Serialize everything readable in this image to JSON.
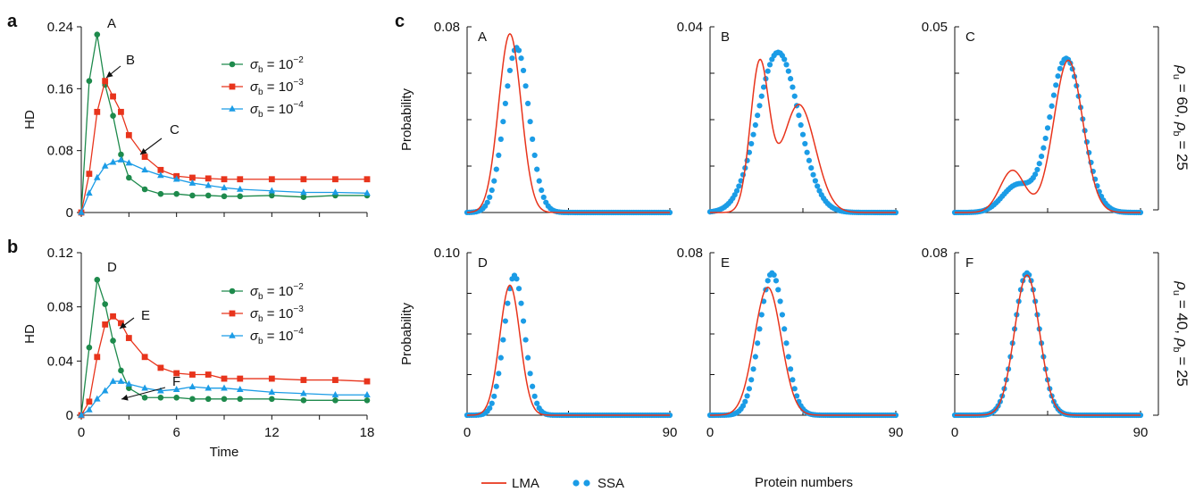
{
  "panel_labels": {
    "a": "a",
    "b": "b",
    "c": "c"
  },
  "legend_ab": {
    "entries": [
      {
        "symbol": "σ",
        "sub": "b",
        "eq": " = 10",
        "exp": "−2",
        "color": "#1e8a4c",
        "marker": "circle"
      },
      {
        "symbol": "σ",
        "sub": "b",
        "eq": " = 10",
        "exp": "−3",
        "color": "#e8341c",
        "marker": "square"
      },
      {
        "symbol": "σ",
        "sub": "b",
        "eq": " = 10",
        "exp": "−4",
        "color": "#1b9ce6",
        "marker": "triangle"
      }
    ]
  },
  "legend_c": {
    "lma": "LMA",
    "ssa": "SSA",
    "lma_color": "#e8341c",
    "ssa_color": "#1b9ce6"
  },
  "row_labels": [
    {
      "rho": "ρ",
      "u_sub": "u",
      "u_val": " = 60, ",
      "b_sub": "b",
      "b_val": " = 25"
    },
    {
      "rho": "ρ",
      "u_sub": "u",
      "u_val": " = 40, ",
      "b_sub": "b",
      "b_val": " = 25"
    }
  ],
  "chart_data": [
    {
      "id": "a",
      "type": "line",
      "ylabel": "HD",
      "xlabel": "",
      "xlim": [
        0,
        18
      ],
      "ylim": [
        0,
        0.24
      ],
      "xticks": [
        0,
        6,
        12,
        18
      ],
      "yticks": [
        0,
        0.08,
        0.16,
        0.24
      ],
      "ytick_labels": [
        "0",
        "0.08",
        "0.16",
        "0.24"
      ],
      "series": [
        {
          "name": "σb = 10−2",
          "color": "#1e8a4c",
          "marker": "circle",
          "x": [
            0,
            0.5,
            1,
            1.5,
            2,
            2.5,
            3,
            4,
            5,
            6,
            7,
            8,
            9,
            10,
            12,
            14,
            16,
            18
          ],
          "y": [
            0,
            0.17,
            0.23,
            0.165,
            0.125,
            0.075,
            0.045,
            0.03,
            0.024,
            0.024,
            0.022,
            0.022,
            0.021,
            0.021,
            0.022,
            0.02,
            0.022,
            0.022
          ]
        },
        {
          "name": "σb = 10−3",
          "color": "#e8341c",
          "marker": "square",
          "x": [
            0,
            0.5,
            1,
            1.5,
            2,
            2.5,
            3,
            4,
            5,
            6,
            7,
            8,
            9,
            10,
            12,
            14,
            16,
            18
          ],
          "y": [
            0,
            0.05,
            0.13,
            0.17,
            0.15,
            0.13,
            0.1,
            0.072,
            0.055,
            0.047,
            0.045,
            0.044,
            0.043,
            0.043,
            0.043,
            0.043,
            0.043,
            0.043
          ]
        },
        {
          "name": "σb = 10−4",
          "color": "#1b9ce6",
          "marker": "triangle",
          "x": [
            0,
            0.5,
            1,
            1.5,
            2,
            2.5,
            3,
            4,
            5,
            6,
            7,
            8,
            9,
            10,
            12,
            14,
            16,
            18
          ],
          "y": [
            0,
            0.025,
            0.045,
            0.06,
            0.065,
            0.068,
            0.064,
            0.055,
            0.048,
            0.043,
            0.038,
            0.035,
            0.032,
            0.03,
            0.028,
            0.026,
            0.026,
            0.025
          ]
        }
      ],
      "annotations": [
        {
          "text": "A",
          "x": 1,
          "y": 0.23,
          "arrow": false
        },
        {
          "text": "B",
          "x": 1.5,
          "y": 0.17,
          "arrow": true
        },
        {
          "text": "C",
          "x": 2.5,
          "y": 0.068,
          "arrow": true
        }
      ]
    },
    {
      "id": "b",
      "type": "line",
      "ylabel": "HD",
      "xlabel": "Time",
      "xlim": [
        0,
        18
      ],
      "ylim": [
        0,
        0.12
      ],
      "xticks": [
        0,
        6,
        12,
        18
      ],
      "yticks": [
        0,
        0.04,
        0.08,
        0.12
      ],
      "ytick_labels": [
        "0",
        "0.04",
        "0.08",
        "0.12"
      ],
      "series": [
        {
          "name": "σb = 10−2",
          "color": "#1e8a4c",
          "marker": "circle",
          "x": [
            0,
            0.5,
            1,
            1.5,
            2,
            2.5,
            3,
            4,
            5,
            6,
            7,
            8,
            9,
            10,
            12,
            14,
            16,
            18
          ],
          "y": [
            0,
            0.05,
            0.1,
            0.082,
            0.055,
            0.033,
            0.02,
            0.013,
            0.013,
            0.013,
            0.012,
            0.012,
            0.012,
            0.012,
            0.012,
            0.011,
            0.011,
            0.011
          ]
        },
        {
          "name": "σb = 10−3",
          "color": "#e8341c",
          "marker": "square",
          "x": [
            0,
            0.5,
            1,
            1.5,
            2,
            2.5,
            3,
            4,
            5,
            6,
            7,
            8,
            9,
            10,
            12,
            14,
            16,
            18
          ],
          "y": [
            0,
            0.01,
            0.043,
            0.067,
            0.073,
            0.068,
            0.057,
            0.043,
            0.035,
            0.031,
            0.03,
            0.03,
            0.027,
            0.027,
            0.027,
            0.026,
            0.026,
            0.025
          ]
        },
        {
          "name": "σb = 10−4",
          "color": "#1b9ce6",
          "marker": "triangle",
          "x": [
            0,
            0.5,
            1,
            1.5,
            2,
            2.5,
            3,
            4,
            5,
            6,
            7,
            8,
            9,
            10,
            12,
            14,
            16,
            18
          ],
          "y": [
            0,
            0.004,
            0.012,
            0.018,
            0.025,
            0.025,
            0.023,
            0.02,
            0.018,
            0.019,
            0.021,
            0.02,
            0.02,
            0.019,
            0.017,
            0.016,
            0.015,
            0.015
          ]
        }
      ],
      "annotations": [
        {
          "text": "D",
          "x": 1,
          "y": 0.1,
          "arrow": false
        },
        {
          "text": "E",
          "x": 2,
          "y": 0.073,
          "arrow": true
        },
        {
          "text": "F",
          "x": 2.5,
          "y": 0.025,
          "arrow": true
        }
      ]
    },
    {
      "id": "cA",
      "type": "line",
      "label": "A",
      "ylabel": "Probability",
      "xlim": [
        0,
        90
      ],
      "ylim": [
        0,
        0.08
      ],
      "ytick_label": "0.08",
      "xtick_labels": [
        "",
        "",
        ""
      ],
      "lma": {
        "components": [
          {
            "w": 1,
            "mu": 19,
            "sd": 5
          }
        ],
        "peak": 0.077
      },
      "ssa": {
        "components": [
          {
            "w": 1,
            "mu": 22,
            "sd": 5.5
          }
        ],
        "peak": 0.071
      }
    },
    {
      "id": "cB",
      "type": "line",
      "label": "B",
      "xlim": [
        0,
        90
      ],
      "ylim": [
        0,
        0.04
      ],
      "ytick_label": "0.04",
      "xtick_labels": [
        "",
        "",
        ""
      ],
      "lma": {
        "components": [
          {
            "w": 0.0305,
            "mu": 24,
            "sd": 4.5
          },
          {
            "w": 0.0225,
            "mu": 43,
            "sd": 8
          }
        ],
        "peak": 0.033
      },
      "ssa": {
        "components": [
          {
            "w": 1,
            "mu": 33,
            "sd": 10
          }
        ],
        "peak": 0.0345
      }
    },
    {
      "id": "cC",
      "type": "line",
      "label": "C",
      "xlim": [
        0,
        90
      ],
      "ylim": [
        0,
        0.05
      ],
      "ytick_label": "0.05",
      "xtick_labels": [
        "",
        "",
        ""
      ],
      "lma": {
        "components": [
          {
            "w": 0.0115,
            "mu": 28,
            "sd": 6
          },
          {
            "w": 0.0415,
            "mu": 55,
            "sd": 7
          }
        ],
        "peak": 0.041
      },
      "ssa": {
        "components": [
          {
            "w": 0.007,
            "mu": 30,
            "sd": 7
          },
          {
            "w": 0.0405,
            "mu": 54,
            "sd": 8
          }
        ],
        "peak": 0.0415
      }
    },
    {
      "id": "cD",
      "type": "line",
      "label": "D",
      "ylabel": "Probability",
      "xlim": [
        0,
        90
      ],
      "ylim": [
        0,
        0.1
      ],
      "ytick_label": "0.10",
      "xtick_labels": [
        "0",
        "",
        "90"
      ],
      "lma": {
        "components": [
          {
            "w": 1,
            "mu": 19,
            "sd": 4.5
          }
        ],
        "peak": 0.08
      },
      "ssa": {
        "components": [
          {
            "w": 1,
            "mu": 21,
            "sd": 4.5
          }
        ],
        "peak": 0.086
      }
    },
    {
      "id": "cE",
      "type": "line",
      "label": "E",
      "xlim": [
        0,
        90
      ],
      "ylim": [
        0,
        0.08
      ],
      "ytick_label": "0.08",
      "xtick_labels": [
        "0",
        "",
        "90"
      ],
      "lma": {
        "components": [
          {
            "w": 1,
            "mu": 28,
            "sd": 6.5
          }
        ],
        "peak": 0.063
      },
      "ssa": {
        "components": [
          {
            "w": 1,
            "mu": 30,
            "sd": 6
          }
        ],
        "peak": 0.07
      }
    },
    {
      "id": "cF",
      "type": "line",
      "label": "F",
      "xlim": [
        0,
        90
      ],
      "ylim": [
        0,
        0.08
      ],
      "ytick_label": "0.08",
      "xtick_labels": [
        "0",
        "",
        "90"
      ],
      "lma": {
        "components": [
          {
            "w": 1,
            "mu": 35,
            "sd": 6
          }
        ],
        "peak": 0.069
      },
      "ssa": {
        "components": [
          {
            "w": 1,
            "mu": 35,
            "sd": 6
          }
        ],
        "peak": 0.07
      }
    }
  ],
  "c_xlabel": "Protein numbers"
}
